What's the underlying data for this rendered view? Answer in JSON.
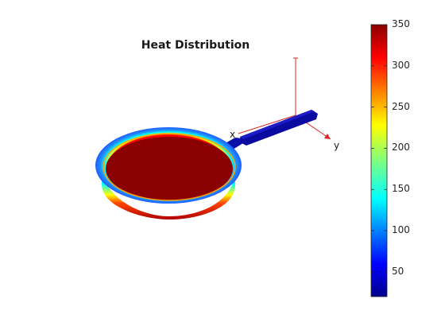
{
  "figure": {
    "title": "Heat Distribution",
    "axes": {
      "x_label": "x",
      "y_label": "y"
    }
  },
  "colorbar": {
    "min": 20,
    "max": 350,
    "ticks": [
      "50",
      "100",
      "150",
      "200",
      "250",
      "300",
      "350"
    ],
    "tick_values": [
      50,
      100,
      150,
      200,
      250,
      300,
      350
    ],
    "colormap": "jet"
  },
  "colors": {
    "hot": "#8b0000",
    "cold": "#00008b",
    "axis_line": "#d62728"
  }
}
